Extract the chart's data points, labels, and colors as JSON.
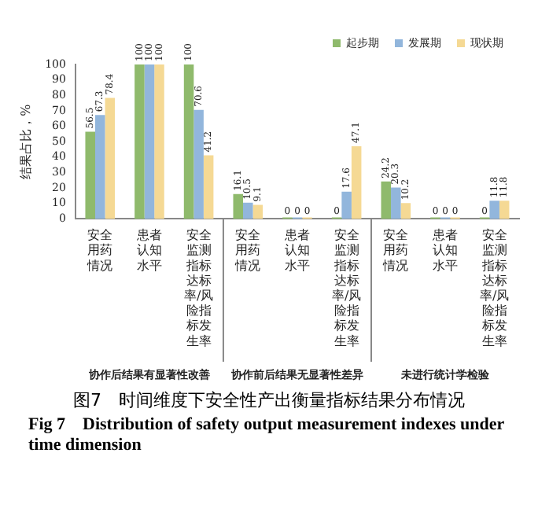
{
  "chart_data": {
    "type": "bar",
    "title": "图7　时间维度下安全性产出衡量指标结果分布情况",
    "subtitle": "Fig 7　Distribution of safety output measurement indexes under time dimension",
    "ylabel": "结果占比，%",
    "categories": [
      "安全用药情况",
      "患者认知水平",
      "安全监测指标达标率/风险指标发生率",
      "安全用药情况",
      "患者认知水平",
      "安全监测指标达标率/风险指标发生率",
      "安全用药情况",
      "患者认知水平",
      "安全监测指标达标率/风险指标发生率"
    ],
    "series": [
      {
        "name": "起步期",
        "color": "#8fba6c",
        "values": [
          56.5,
          100,
          100,
          16.1,
          0,
          0,
          24.2,
          0,
          0
        ]
      },
      {
        "name": "发展期",
        "color": "#92b6dc",
        "values": [
          67.3,
          100,
          70.6,
          10.5,
          0,
          17.6,
          20.3,
          0,
          11.8
        ]
      },
      {
        "name": "现状期",
        "color": "#f5d994",
        "values": [
          78.4,
          100,
          41.2,
          9.1,
          0,
          47.1,
          10.2,
          0,
          11.8
        ]
      }
    ],
    "ylim": [
      0,
      100
    ],
    "yticks": [
      0,
      10,
      20,
      30,
      40,
      50,
      60,
      70,
      80,
      90,
      100
    ],
    "grid": false,
    "legend": "top right",
    "data_labels": true,
    "annotations": [
      "协作后结果有显著性改善",
      "协作前后结果无显著性差异",
      "未进行统计学检验"
    ]
  }
}
